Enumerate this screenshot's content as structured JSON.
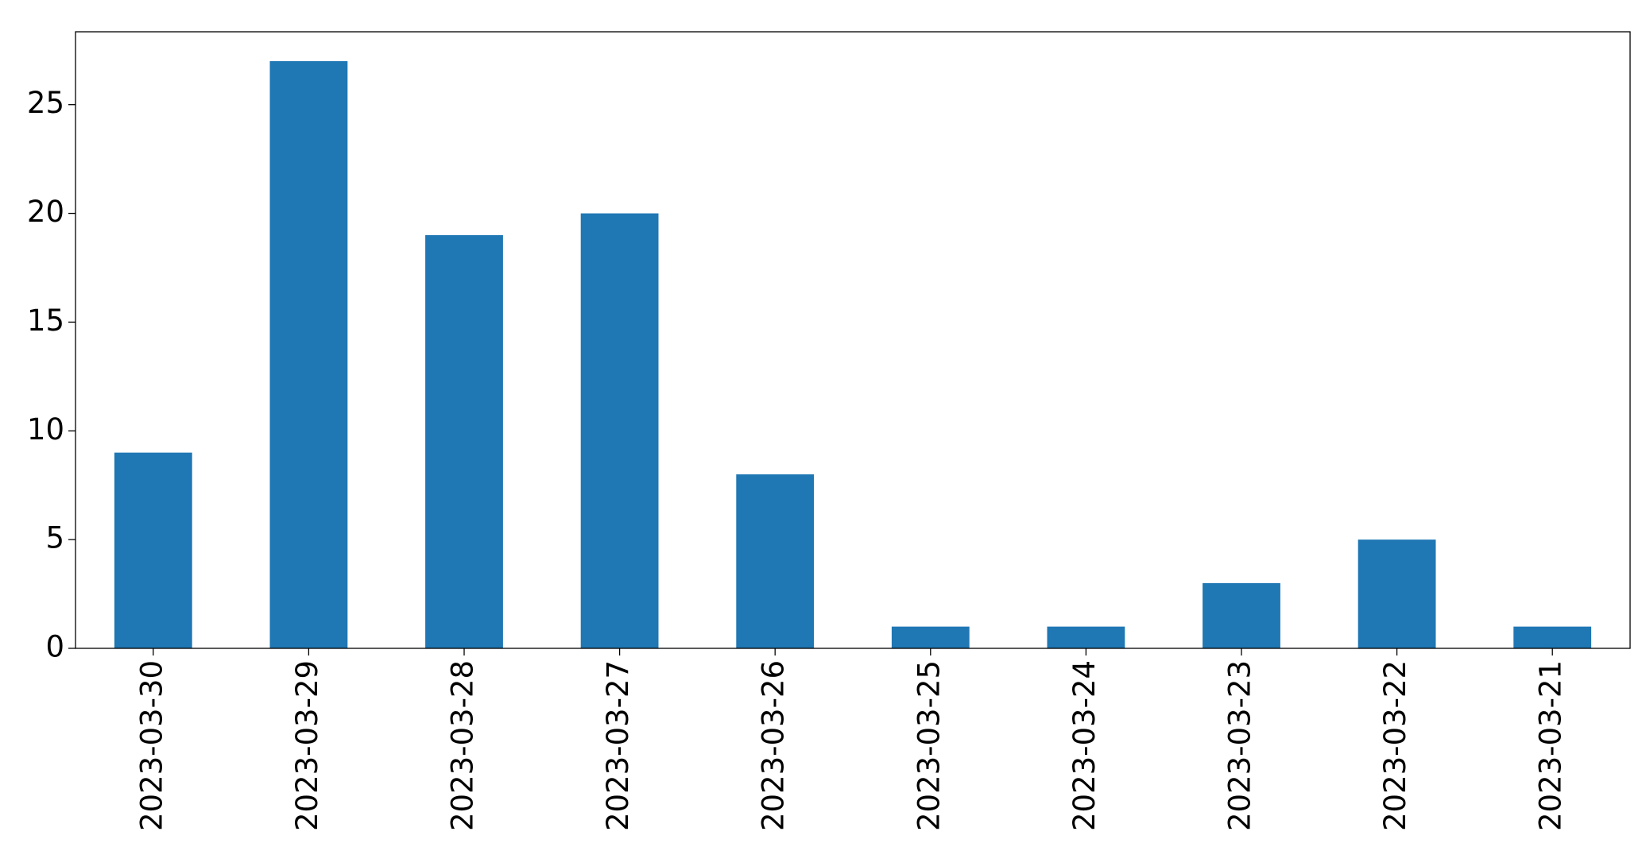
{
  "chart_data": {
    "type": "bar",
    "categories": [
      "2023-03-30",
      "2023-03-29",
      "2023-03-28",
      "2023-03-27",
      "2023-03-26",
      "2023-03-25",
      "2023-03-24",
      "2023-03-23",
      "2023-03-22",
      "2023-03-21"
    ],
    "values": [
      9,
      27,
      19,
      20,
      8,
      1,
      1,
      3,
      5,
      1
    ],
    "color": "#1f77b4",
    "ylim": [
      0,
      28.35
    ],
    "yticks": [
      0,
      5,
      10,
      15,
      20,
      25
    ],
    "grid": false
  }
}
